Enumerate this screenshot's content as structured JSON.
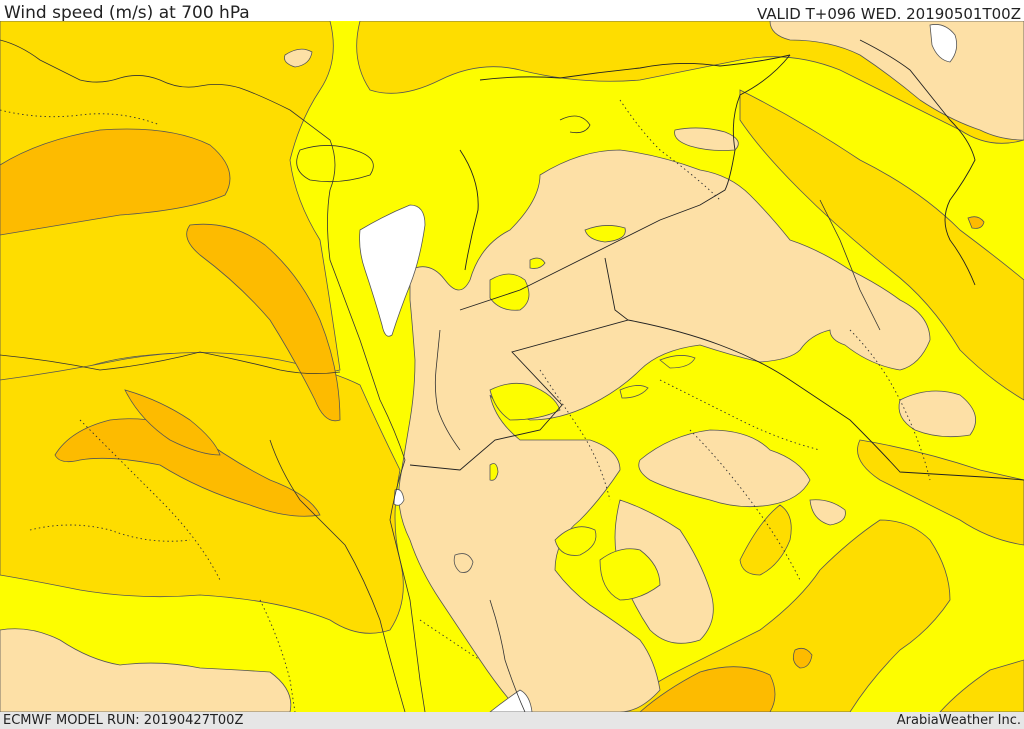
{
  "header": {
    "title": "Wind speed (m/s) at 700 hPa",
    "valid": "VALID T+096 WED. 20190501T00Z"
  },
  "footer": {
    "model_run": "ECMWF MODEL RUN: 20190427T00Z",
    "credit": "ArabiaWeather Inc."
  },
  "palette": {
    "light": "#fde0a6",
    "yellow": "#fdfd00",
    "gold": "#fedd00",
    "orange": "#fdbb00",
    "land_white": "#ffffff"
  }
}
